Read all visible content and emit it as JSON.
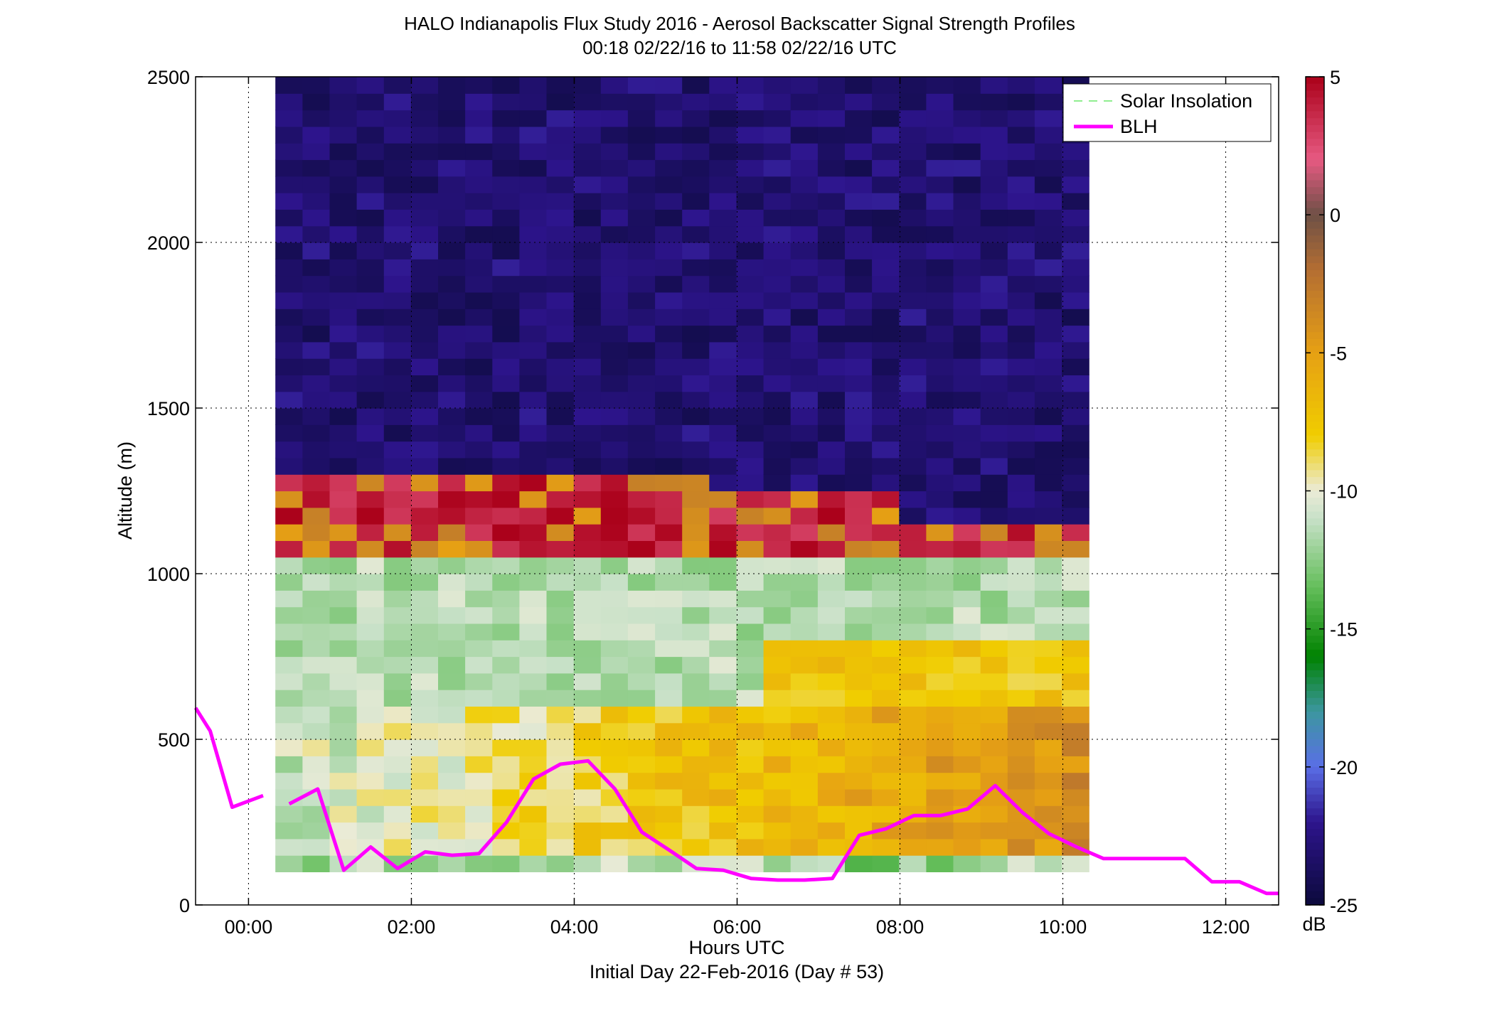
{
  "title_line1": "HALO Indianapolis Flux Study 2016 - Aerosol Backscatter Signal Strength Profiles",
  "title_line2": "00:18 02/22/16 to 11:58 02/22/16  UTC",
  "xlabel": "Hours UTC",
  "ylabel": "Altitude (m)",
  "footnote": "Initial Day 22-Feb-2016 (Day # 53)",
  "colorbar_label": "dB",
  "legend": {
    "solar": "Solar Insolation",
    "blh": "BLH"
  },
  "chart_data": {
    "type": "heatmap",
    "x_unit": "hours UTC",
    "xlim": [
      -0.65,
      12.65
    ],
    "ylim": [
      0,
      2500
    ],
    "x_ticks": [
      0,
      2,
      4,
      6,
      8,
      10,
      12
    ],
    "x_tick_labels": [
      "00:00",
      "02:00",
      "04:00",
      "06:00",
      "08:00",
      "10:00",
      "12:00"
    ],
    "y_ticks": [
      0,
      500,
      1000,
      1500,
      2000,
      2500
    ],
    "y_tick_labels": [
      "0",
      "500",
      "1000",
      "1500",
      "2000",
      "2500"
    ],
    "grid": true,
    "legend_position": "top-right",
    "colorbar": {
      "min": -25,
      "max": 5,
      "ticks": [
        5,
        0,
        -5,
        -10,
        -15,
        -20,
        -25
      ]
    },
    "profile_start_hours": 0.33,
    "profile_step_hours": 0.333,
    "profile_count": 30,
    "blh": {
      "name": "BLH",
      "color": "#ff00ff",
      "segments": [
        {
          "x": [
            -0.65,
            -0.47,
            -0.2,
            0.18
          ],
          "y": [
            595,
            525,
            295,
            330
          ]
        },
        {
          "x": [
            0.5,
            0.85,
            1.17,
            1.5,
            1.83,
            2.17,
            2.5,
            2.83,
            3.17,
            3.5,
            3.83,
            4.17,
            4.5,
            4.83,
            5.17,
            5.5,
            5.83,
            6.17,
            6.5,
            6.83,
            7.17,
            7.5,
            7.83,
            8.17,
            8.5,
            8.83,
            9.17,
            9.5,
            9.83,
            10.17,
            10.5,
            10.83,
            11.17,
            11.5,
            11.83,
            12.17,
            12.5,
            12.65
          ],
          "y": [
            305,
            350,
            105,
            175,
            110,
            160,
            150,
            155,
            250,
            380,
            425,
            435,
            350,
            220,
            165,
            110,
            105,
            80,
            75,
            75,
            80,
            210,
            230,
            270,
            270,
            290,
            360,
            280,
            215,
            175,
            140,
            140,
            140,
            140,
            70,
            70,
            35,
            35
          ]
        }
      ]
    },
    "solar_insolation": {
      "name": "Solar Insolation",
      "color": "#90ee90",
      "values": []
    }
  }
}
